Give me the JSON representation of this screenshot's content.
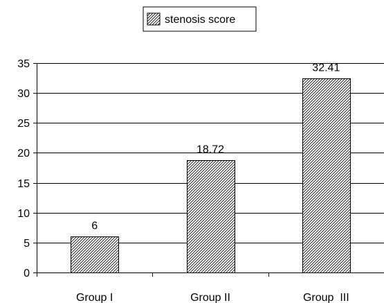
{
  "chart_data": {
    "type": "bar",
    "categories": [
      "Group I",
      "Group II",
      "Group  III"
    ],
    "series": [
      {
        "name": "stenosis score",
        "values": [
          6,
          18.72,
          32.41
        ]
      }
    ],
    "data_labels": [
      "6",
      "18.72",
      "32.41"
    ],
    "ylim": [
      0,
      35
    ],
    "yticks": [
      0,
      5,
      10,
      15,
      20,
      25,
      30,
      35
    ],
    "grid": true,
    "legend_position": "top-center",
    "bar_fill": "diagonal-hatch",
    "colors": {
      "bar_stroke": "#000000",
      "hatch": "#000000",
      "background": "#ffffff"
    }
  }
}
